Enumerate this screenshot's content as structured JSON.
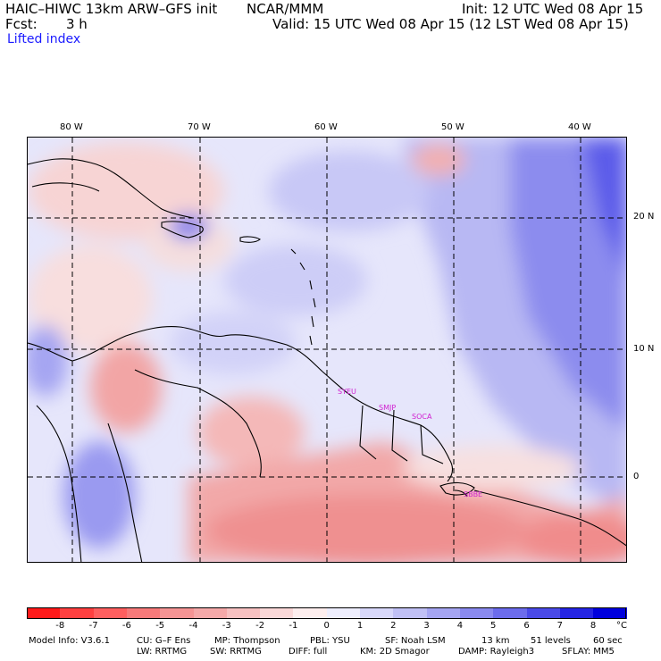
{
  "header": {
    "model_title": "HAIC–HIWC 13km ARW–GFS init",
    "agency": "NCAR/MMM",
    "init": "Init: 12 UTC Wed 08 Apr 15",
    "fcst_label": "Fcst:",
    "fcst_value": "3 h",
    "valid": "Valid: 15 UTC Wed 08 Apr 15 (12 LST Wed 08 Apr 15)",
    "field": "Lifted index"
  },
  "map": {
    "lon_labels": [
      "80 W",
      "70 W",
      "60 W",
      "50 W",
      "40 W"
    ],
    "lat_labels": [
      "20 N",
      "10 N",
      "0"
    ],
    "stations": [
      "SYEU",
      "SMJP",
      "SOCA",
      "SBBE"
    ]
  },
  "colorbar": {
    "labels": [
      "-8",
      "-7",
      "-6",
      "-5",
      "-4",
      "-3",
      "-2",
      "-1",
      "0",
      "1",
      "2",
      "3",
      "4",
      "5",
      "6",
      "7",
      "8"
    ],
    "unit": "°C",
    "colors": [
      "#ff1a1a",
      "#ff4040",
      "#ff5f5f",
      "#f77a7a",
      "#f59494",
      "#f5a9a9",
      "#f7c1c1",
      "#fad8d8",
      "#fdeeee",
      "#eeeefd",
      "#d8d8fa",
      "#c0c0f5",
      "#a5a5f2",
      "#8a8aef",
      "#6c6cec",
      "#4a4ae8",
      "#2525e4",
      "#0000dd"
    ]
  },
  "footer": {
    "line1": [
      "Model Info: V3.6.1",
      "CU: G–F Ens",
      "MP: Thompson",
      "PBL: YSU",
      "SF: Noah LSM",
      "13 km",
      "51 levels",
      "60 sec"
    ],
    "line2": [
      "LW: RRTMG",
      "SW: RRTMG",
      "DIFF: full",
      "KM: 2D Smagor",
      "DAMP: Rayleigh3",
      "SFLAY: MM5"
    ]
  }
}
